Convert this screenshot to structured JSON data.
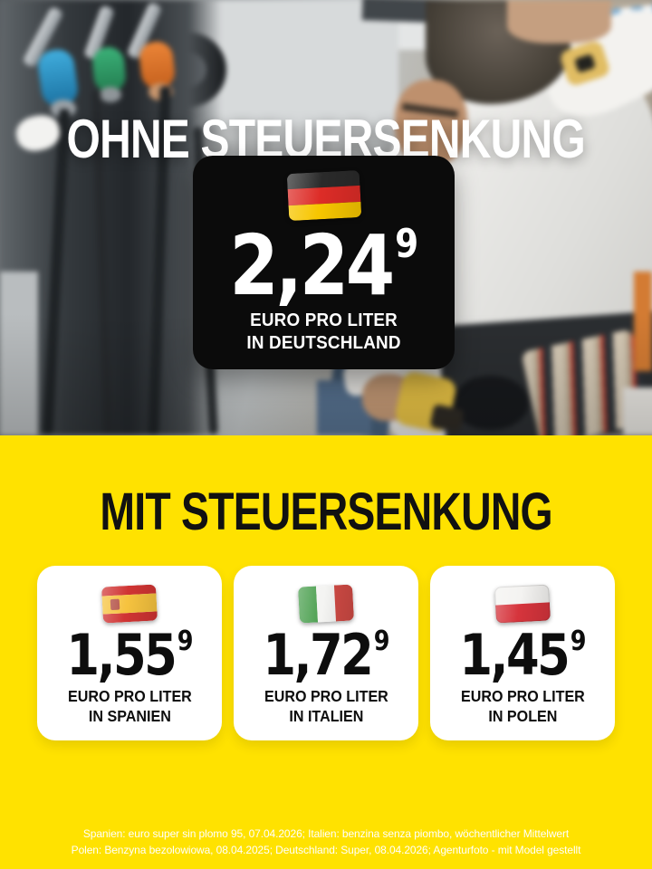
{
  "colors": {
    "yellow": "#FFE200",
    "card_dark": "#0B0B0B",
    "text_light": "#FFFFFF",
    "text_dark": "#111111",
    "flag_germany": [
      "#2A2A2A",
      "#DD2C27",
      "#F7C600"
    ],
    "flag_spain": [
      "#D03433",
      "#F6C33F"
    ],
    "flag_italy": [
      "#4A9F4E",
      "#F4F4F2",
      "#CF4A44"
    ],
    "flag_poland": [
      "#F4F3F1",
      "#D6343C"
    ]
  },
  "top": {
    "heading": "OHNE STEUERSENKUNG",
    "card": {
      "flag": "germany-flag",
      "price": "2,24",
      "superscript": "9",
      "label_line1": "EURO PRO LITER",
      "label_line2": "IN DEUTSCHLAND"
    }
  },
  "bottom": {
    "heading": "MIT STEUERSENKUNG",
    "cards": [
      {
        "flag": "spain-flag",
        "price": "1,55",
        "superscript": "9",
        "label_line1": "EURO PRO LITER",
        "label_line2": "IN SPANIEN"
      },
      {
        "flag": "italy-flag",
        "price": "1,72",
        "superscript": "9",
        "label_line1": "EURO PRO LITER",
        "label_line2": "IN ITALIEN"
      },
      {
        "flag": "poland-flag",
        "price": "1,45",
        "superscript": "9",
        "label_line1": "EURO PRO LITER",
        "label_line2": "IN POLEN"
      }
    ],
    "footnote_line1": "Spanien: euro super sin plomo 95, 07.04.2026; Italien: benzina senza piombo, wöchentlicher Mittelwert",
    "footnote_line2": "Polen: Benzyna bezolowiowa, 08.04.2025; Deutschland: Super, 08.04.2026; Agenturfoto - mit Model gestellt"
  }
}
